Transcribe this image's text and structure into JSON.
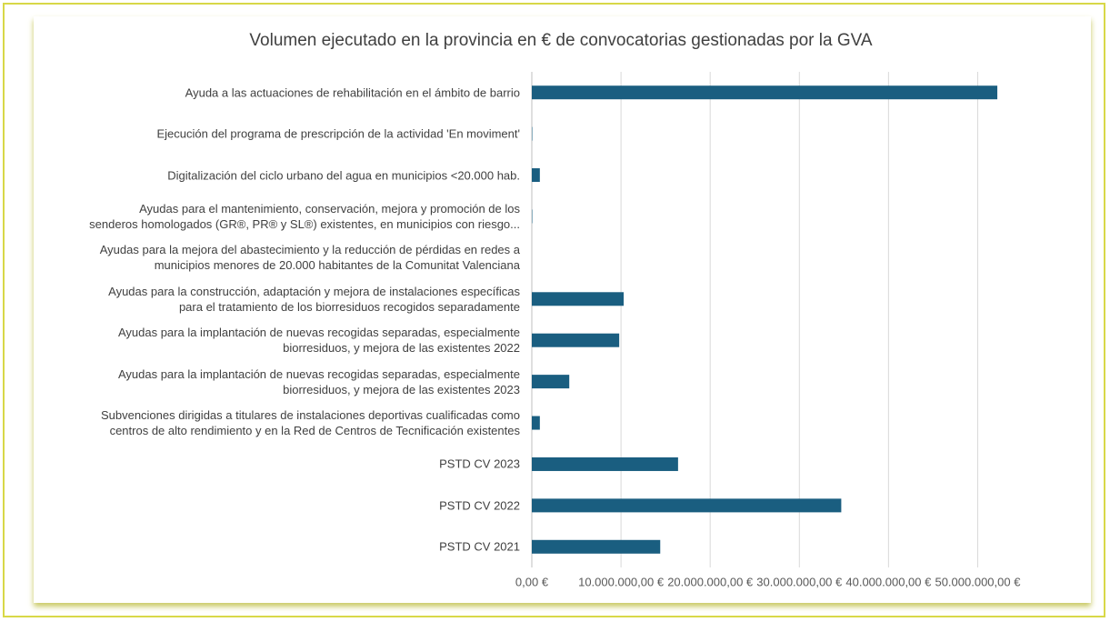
{
  "chart_data": {
    "type": "bar",
    "orientation": "horizontal",
    "title": "Volumen ejecutado en la provincia en € de convocatorias gestionadas por la GVA",
    "categories": [
      "Ayuda a las actuaciones de rehabilitación en el ámbito de barrio",
      "Ejecución del programa de prescripción de la actividad 'En moviment'",
      "Digitalización del ciclo urbano del agua en municipios <20.000 hab.",
      "Ayudas para el mantenimiento, conservación, mejora y promoción de los\nsenderos homologados (GR®, PR® y SL®) existentes, en municipios con riesgo...",
      "Ayudas para la mejora del abastecimiento y la reducción de pérdidas en redes a\nmunicipios menores de 20.000 habitantes de la Comunitat Valenciana",
      "Ayudas para la construcción, adaptación y mejora de instalaciones específicas\npara el tratamiento de los biorresiduos recogidos separadamente",
      "Ayudas para la implantación de nuevas recogidas separadas, especialmente\nbiorresiduos, y mejora de las existentes 2022",
      "Ayudas para la implantación de nuevas recogidas separadas, especialmente\nbiorresiduos, y mejora de las existentes 2023",
      "Subvenciones dirigidas a titulares de instalaciones deportivas cualificadas como\ncentros de alto rendimiento y en la Red de Centros de Tecnificación existentes",
      "PSTD CV 2023",
      "PSTD CV 2022",
      "PSTD CV 2021"
    ],
    "values": [
      52200000,
      50000,
      900000,
      50000,
      0,
      10300000,
      9800000,
      4200000,
      900000,
      16400000,
      34700000,
      14400000
    ],
    "color": "#1a5e80",
    "xlim": [
      0,
      52500000
    ],
    "xticks": [
      {
        "value": 0,
        "label": "0,00 €"
      },
      {
        "value": 10000000,
        "label": "10.000.000,00 €"
      },
      {
        "value": 20000000,
        "label": "20.000.000,00 €"
      },
      {
        "value": 30000000,
        "label": "30.000.000,00 €"
      },
      {
        "value": 40000000,
        "label": "40.000.000,00 €"
      },
      {
        "value": 50000000,
        "label": "50.000.000,00 €"
      }
    ],
    "grid": true
  }
}
